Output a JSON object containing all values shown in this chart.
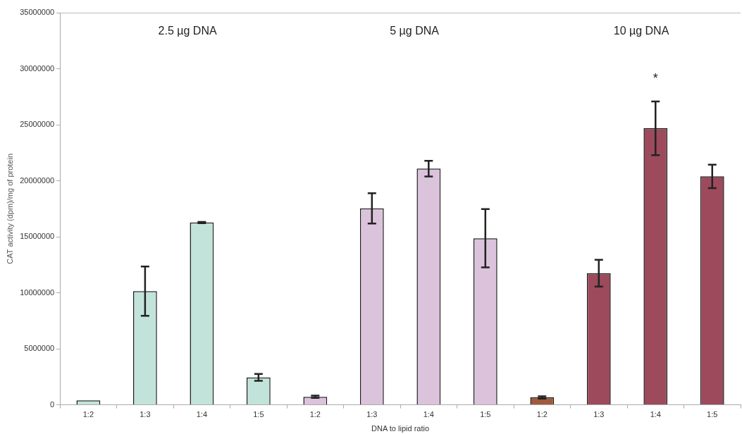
{
  "chart_data": {
    "type": "bar",
    "xlabel": "DNA to lipid ratio",
    "ylabel": "CAT activity (dpm)/mg of protein",
    "categories": [
      "1:2",
      "1:3",
      "1:4",
      "1:5",
      "1:2",
      "1:3",
      "1:4",
      "1:5",
      "1:2",
      "1:3",
      "1:4",
      "1:5"
    ],
    "values": [
      400000,
      10140000,
      16270000,
      2450000,
      720000,
      17530000,
      21080000,
      14870000,
      660000,
      11750000,
      24680000,
      20390000
    ],
    "errors": [
      null,
      2200000,
      50000,
      300000,
      100000,
      1350000,
      700000,
      2600000,
      100000,
      1200000,
      2400000,
      1050000
    ],
    "colors": [
      "#c2e3da",
      "#c2e3da",
      "#c2e3da",
      "#c2e3da",
      "#dcc3dc",
      "#dcc3dc",
      "#dcc3dc",
      "#dcc3dc",
      "#a05a3c",
      "#9c4a5c",
      "#9c4a5c",
      "#9c4a5c"
    ],
    "ylim": [
      0,
      35000000
    ],
    "yticks": [
      0,
      5000000,
      10000000,
      15000000,
      20000000,
      25000000,
      30000000,
      35000000
    ],
    "grid": false,
    "legend": false,
    "annotations": [
      "2.5 µg DNA",
      "5 µg DNA",
      "10 µg DNA",
      "*"
    ]
  }
}
